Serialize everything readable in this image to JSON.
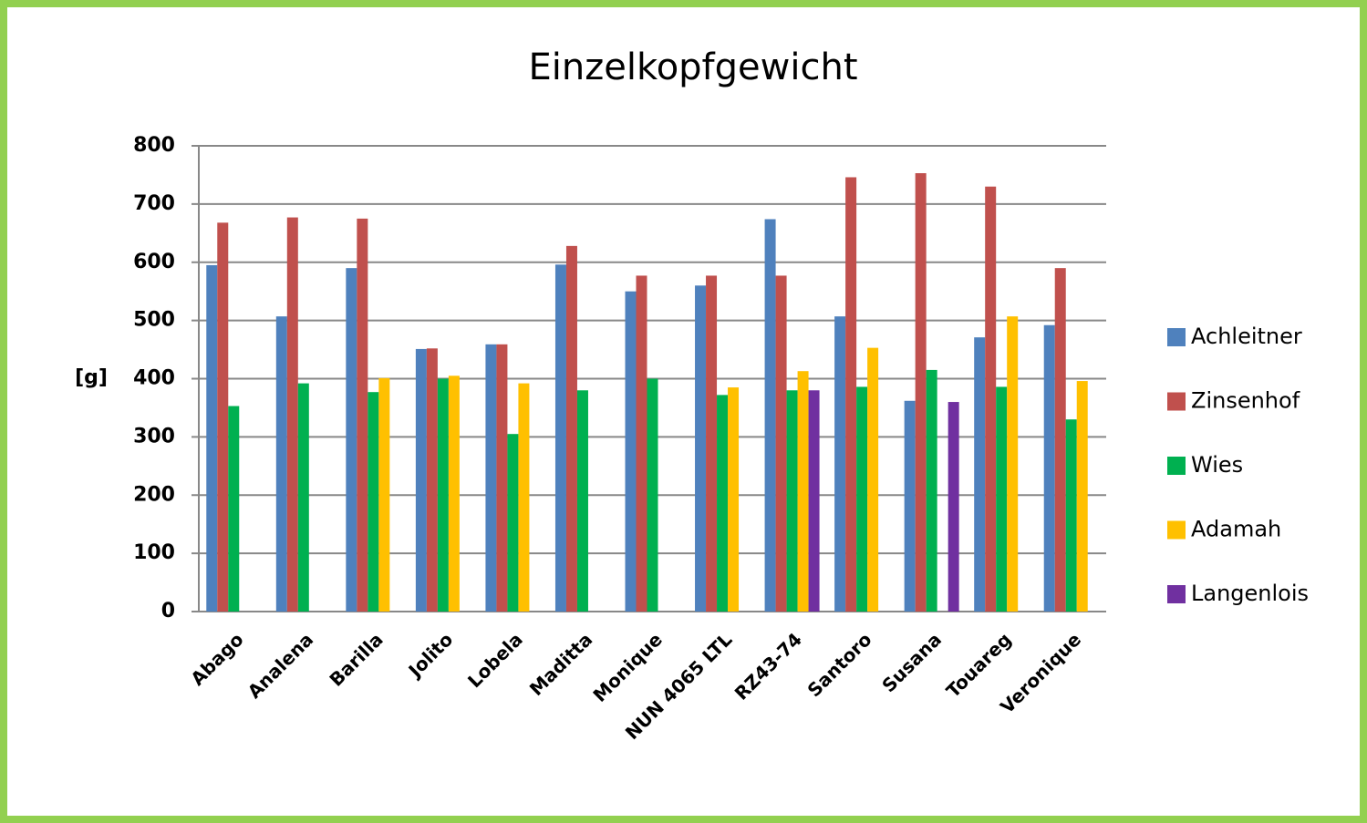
{
  "chart_data": {
    "type": "bar",
    "title": "Einzelkopfgewicht",
    "y_label": "[g]",
    "categories": [
      "Abago",
      "Analena",
      "Barilla",
      "Jolito",
      "Lobela",
      "Maditta",
      "Monique",
      "NUN 4065 LTL",
      "RZ43-74",
      "Santoro",
      "Susana",
      "Touareg",
      "Veronique"
    ],
    "series": [
      {
        "name": "Achleitner",
        "color": "#4f81bd",
        "values": [
          595,
          507,
          590,
          451,
          459,
          596,
          550,
          560,
          674,
          507,
          362,
          471,
          492
        ]
      },
      {
        "name": "Zinsenhof",
        "color": "#c0504d",
        "values": [
          668,
          677,
          675,
          452,
          459,
          628,
          577,
          577,
          577,
          746,
          753,
          730,
          590
        ]
      },
      {
        "name": "Wies",
        "color": "#00b050",
        "values": [
          353,
          392,
          377,
          400,
          305,
          380,
          400,
          372,
          380,
          386,
          415,
          386,
          330
        ]
      },
      {
        "name": "Adamah",
        "color": "#ffc000",
        "values": [
          null,
          null,
          401,
          405,
          392,
          null,
          null,
          385,
          413,
          453,
          null,
          507,
          396
        ]
      },
      {
        "name": "Langenlois",
        "color": "#7030a0",
        "values": [
          null,
          null,
          null,
          null,
          null,
          null,
          null,
          null,
          380,
          null,
          360,
          null,
          null
        ]
      }
    ],
    "ylim": [
      0,
      800
    ],
    "yticks": [
      0,
      100,
      200,
      300,
      400,
      500,
      600,
      700,
      800
    ],
    "grid": true,
    "legend": "right"
  }
}
